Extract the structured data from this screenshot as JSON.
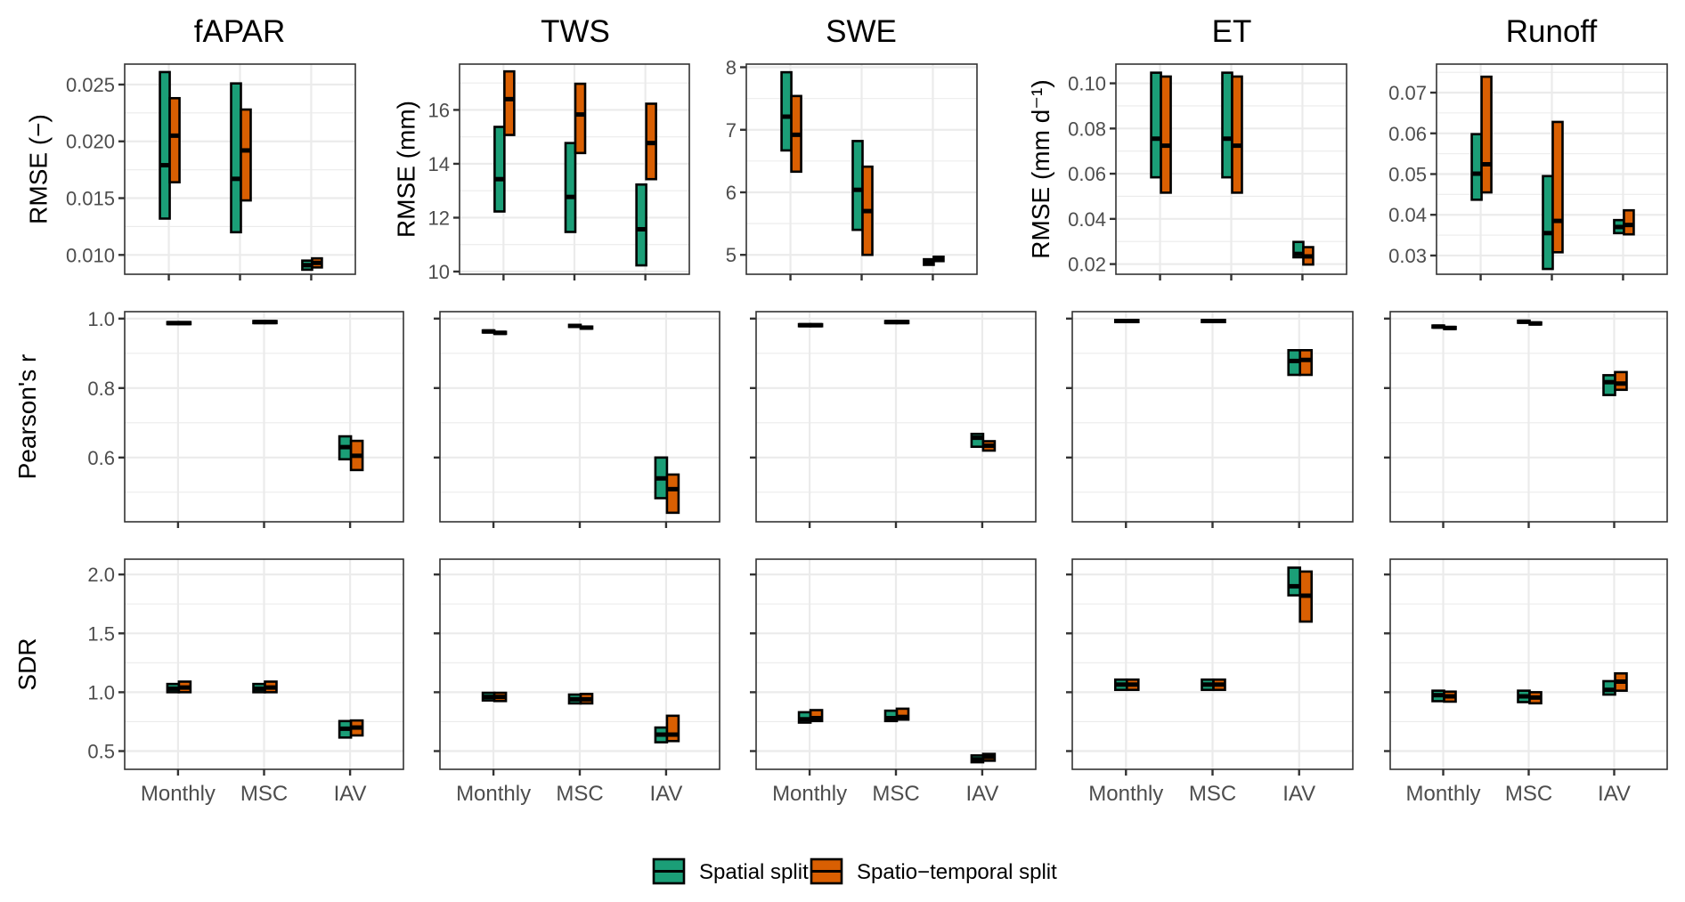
{
  "chart_data": {
    "type": "crossbar",
    "layout": "facet grid, 3 rows (metrics) x 5 columns (variables)",
    "categories": [
      "Monthly",
      "MSC",
      "IAV"
    ],
    "legend": {
      "position": "bottom",
      "entries": [
        {
          "key": "spatial",
          "label": "Spatial split",
          "color": "#1b9e77"
        },
        {
          "key": "spatiotemporal",
          "label": "Spatio−temporal split",
          "color": "#d95f02"
        }
      ]
    },
    "columns": [
      {
        "title": "fAPAR"
      },
      {
        "title": "TWS"
      },
      {
        "title": "SWE"
      },
      {
        "title": "ET"
      },
      {
        "title": "Runoff"
      }
    ],
    "rows": [
      {
        "metric": "RMSE",
        "shared_y": false,
        "panels": [
          {
            "variable": "fAPAR",
            "ylabel": "RMSE (−)",
            "ylim": [
              0.0083,
              0.0268
            ],
            "yticks": [
              0.01,
              0.015,
              0.02,
              0.025
            ],
            "ytick_labels": [
              "0.010",
              "0.015",
              "0.020",
              "0.025"
            ],
            "series": {
              "spatial": [
                {
                  "min": 0.0132,
                  "median": 0.0179,
                  "max": 0.0261
                },
                {
                  "min": 0.012,
                  "median": 0.0167,
                  "max": 0.0251
                },
                {
                  "min": 0.0087,
                  "median": 0.0091,
                  "max": 0.0095
                }
              ],
              "spatiotemporal": [
                {
                  "min": 0.0164,
                  "median": 0.0205,
                  "max": 0.0238
                },
                {
                  "min": 0.0148,
                  "median": 0.0192,
                  "max": 0.0228
                },
                {
                  "min": 0.0089,
                  "median": 0.0093,
                  "max": 0.0097
                }
              ]
            }
          },
          {
            "variable": "TWS",
            "ylabel": "RMSE (mm)",
            "ylim": [
              9.9,
              17.7
            ],
            "yticks": [
              10,
              12,
              14,
              16
            ],
            "ytick_labels": [
              "10",
              "12",
              "14",
              "16"
            ],
            "series": {
              "spatial": [
                {
                  "min": 12.23,
                  "median": 13.43,
                  "max": 15.37
                },
                {
                  "min": 11.47,
                  "median": 12.77,
                  "max": 14.77
                },
                {
                  "min": 10.23,
                  "median": 11.57,
                  "max": 13.23
                }
              ],
              "spatiotemporal": [
                {
                  "min": 15.07,
                  "median": 16.4,
                  "max": 17.43
                },
                {
                  "min": 14.4,
                  "median": 15.83,
                  "max": 16.97
                },
                {
                  "min": 13.43,
                  "median": 14.77,
                  "max": 16.23
                }
              ]
            }
          },
          {
            "variable": "SWE",
            "ylabel": "",
            "ylim": [
              4.69,
              8.05
            ],
            "yticks": [
              5,
              6,
              7,
              8
            ],
            "ytick_labels": [
              "5",
              "6",
              "7",
              "8"
            ],
            "series": {
              "spatial": [
                {
                  "min": 6.67,
                  "median": 7.21,
                  "max": 7.92
                },
                {
                  "min": 5.4,
                  "median": 6.04,
                  "max": 6.82
                },
                {
                  "min": 4.84,
                  "median": 4.88,
                  "max": 4.93
                }
              ],
              "spatiotemporal": [
                {
                  "min": 6.33,
                  "median": 6.92,
                  "max": 7.54
                },
                {
                  "min": 5.0,
                  "median": 5.7,
                  "max": 6.41
                },
                {
                  "min": 4.9,
                  "median": 4.93,
                  "max": 4.97
                }
              ]
            }
          },
          {
            "variable": "ET",
            "ylabel": "RMSE  (mm  d⁻¹)",
            "ylim": [
              0.0155,
              0.1085
            ],
            "yticks": [
              0.02,
              0.04,
              0.06,
              0.08,
              0.1
            ],
            "ytick_labels": [
              "0.02",
              "0.04",
              "0.06",
              "0.08",
              "0.10"
            ],
            "series": {
              "spatial": [
                {
                  "min": 0.0584,
                  "median": 0.0755,
                  "max": 0.1047
                },
                {
                  "min": 0.0584,
                  "median": 0.0755,
                  "max": 0.1047
                },
                {
                  "min": 0.023,
                  "median": 0.0245,
                  "max": 0.0298
                }
              ],
              "spatiotemporal": [
                {
                  "min": 0.0516,
                  "median": 0.0724,
                  "max": 0.103
                },
                {
                  "min": 0.0516,
                  "median": 0.0724,
                  "max": 0.103
                },
                {
                  "min": 0.0198,
                  "median": 0.0234,
                  "max": 0.0275
                }
              ]
            }
          },
          {
            "variable": "Runoff",
            "ylabel": "",
            "ylim": [
              0.0254,
              0.077
            ],
            "yticks": [
              0.03,
              0.04,
              0.05,
              0.06,
              0.07
            ],
            "ytick_labels": [
              "0.03",
              "0.04",
              "0.05",
              "0.06",
              "0.07"
            ],
            "series": {
              "spatial": [
                {
                  "min": 0.0437,
                  "median": 0.0501,
                  "max": 0.0598
                },
                {
                  "min": 0.0267,
                  "median": 0.0355,
                  "max": 0.0495
                },
                {
                  "min": 0.0355,
                  "median": 0.037,
                  "max": 0.0387
                }
              ],
              "spatiotemporal": [
                {
                  "min": 0.0455,
                  "median": 0.0524,
                  "max": 0.0739
                },
                {
                  "min": 0.0308,
                  "median": 0.0385,
                  "max": 0.0628
                },
                {
                  "min": 0.0352,
                  "median": 0.0375,
                  "max": 0.0411
                }
              ]
            }
          }
        ]
      },
      {
        "metric": "Pearson's r",
        "shared_y": true,
        "ylabel": "Pearson's r",
        "ylim": [
          0.415,
          1.02
        ],
        "yticks": [
          0.6,
          0.8,
          1.0
        ],
        "ytick_labels": [
          "0.6",
          "0.8",
          "1.0"
        ],
        "panels": [
          {
            "variable": "fAPAR",
            "series": {
              "spatial": [
                {
                  "min": 0.984,
                  "median": 0.987,
                  "max": 0.99
                },
                {
                  "min": 0.987,
                  "median": 0.99,
                  "max": 0.993
                },
                {
                  "min": 0.595,
                  "median": 0.63,
                  "max": 0.661
                }
              ],
              "spatiotemporal": [
                {
                  "min": 0.984,
                  "median": 0.987,
                  "max": 0.99
                },
                {
                  "min": 0.987,
                  "median": 0.99,
                  "max": 0.993
                },
                {
                  "min": 0.564,
                  "median": 0.605,
                  "max": 0.648
                }
              ]
            }
          },
          {
            "variable": "TWS",
            "series": {
              "spatial": [
                {
                  "min": 0.96,
                  "median": 0.963,
                  "max": 0.966
                },
                {
                  "min": 0.976,
                  "median": 0.979,
                  "max": 0.982
                },
                {
                  "min": 0.483,
                  "median": 0.54,
                  "max": 0.6
                }
              ],
              "spatiotemporal": [
                {
                  "min": 0.956,
                  "median": 0.959,
                  "max": 0.962
                },
                {
                  "min": 0.971,
                  "median": 0.974,
                  "max": 0.977
                },
                {
                  "min": 0.441,
                  "median": 0.509,
                  "max": 0.551
                }
              ]
            }
          },
          {
            "variable": "SWE",
            "series": {
              "spatial": [
                {
                  "min": 0.978,
                  "median": 0.981,
                  "max": 0.984
                },
                {
                  "min": 0.987,
                  "median": 0.99,
                  "max": 0.993
                },
                {
                  "min": 0.631,
                  "median": 0.657,
                  "max": 0.668
                }
              ],
              "spatiotemporal": [
                {
                  "min": 0.978,
                  "median": 0.981,
                  "max": 0.984
                },
                {
                  "min": 0.987,
                  "median": 0.99,
                  "max": 0.993
                },
                {
                  "min": 0.62,
                  "median": 0.634,
                  "max": 0.647
                }
              ]
            }
          },
          {
            "variable": "ET",
            "series": {
              "spatial": [
                {
                  "min": 0.99,
                  "median": 0.993,
                  "max": 0.996
                },
                {
                  "min": 0.99,
                  "median": 0.993,
                  "max": 0.996
                },
                {
                  "min": 0.838,
                  "median": 0.878,
                  "max": 0.909
                }
              ],
              "spatiotemporal": [
                {
                  "min": 0.99,
                  "median": 0.993,
                  "max": 0.996
                },
                {
                  "min": 0.99,
                  "median": 0.993,
                  "max": 0.996
                },
                {
                  "min": 0.838,
                  "median": 0.881,
                  "max": 0.909
                }
              ]
            }
          },
          {
            "variable": "Runoff",
            "series": {
              "spatial": [
                {
                  "min": 0.974,
                  "median": 0.977,
                  "max": 0.98
                },
                {
                  "min": 0.988,
                  "median": 0.991,
                  "max": 0.994
                },
                {
                  "min": 0.78,
                  "median": 0.817,
                  "max": 0.837
                }
              ],
              "spatiotemporal": [
                {
                  "min": 0.97,
                  "median": 0.973,
                  "max": 0.976
                },
                {
                  "min": 0.983,
                  "median": 0.986,
                  "max": 0.989
                },
                {
                  "min": 0.795,
                  "median": 0.813,
                  "max": 0.846
                }
              ]
            }
          }
        ]
      },
      {
        "metric": "SDR",
        "shared_y": true,
        "ylabel": "SDR",
        "ylim": [
          0.345,
          2.13
        ],
        "yticks": [
          0.5,
          1.0,
          1.5,
          2.0
        ],
        "ytick_labels": [
          "0.5",
          "1.0",
          "1.5",
          "2.0"
        ],
        "panels": [
          {
            "variable": "fAPAR",
            "series": {
              "spatial": [
                {
                  "min": 1.0,
                  "median": 1.03,
                  "max": 1.07
                },
                {
                  "min": 1.0,
                  "median": 1.03,
                  "max": 1.07
                },
                {
                  "min": 0.615,
                  "median": 0.69,
                  "max": 0.755
                }
              ],
              "spatiotemporal": [
                {
                  "min": 1.0,
                  "median": 1.04,
                  "max": 1.09
                },
                {
                  "min": 1.0,
                  "median": 1.04,
                  "max": 1.09
                },
                {
                  "min": 0.633,
                  "median": 0.7,
                  "max": 0.76
                }
              ]
            }
          },
          {
            "variable": "TWS",
            "series": {
              "spatial": [
                {
                  "min": 0.93,
                  "median": 0.96,
                  "max": 0.995
                },
                {
                  "min": 0.905,
                  "median": 0.94,
                  "max": 0.98
                },
                {
                  "min": 0.575,
                  "median": 0.64,
                  "max": 0.7
                }
              ],
              "spatiotemporal": [
                {
                  "min": 0.925,
                  "median": 0.96,
                  "max": 0.995
                },
                {
                  "min": 0.905,
                  "median": 0.94,
                  "max": 0.985
                },
                {
                  "min": 0.585,
                  "median": 0.64,
                  "max": 0.8
                }
              ]
            }
          },
          {
            "variable": "SWE",
            "series": {
              "spatial": [
                {
                  "min": 0.742,
                  "median": 0.77,
                  "max": 0.83
                },
                {
                  "min": 0.755,
                  "median": 0.78,
                  "max": 0.843
                },
                {
                  "min": 0.405,
                  "median": 0.43,
                  "max": 0.463
                }
              ],
              "spatiotemporal": [
                {
                  "min": 0.755,
                  "median": 0.78,
                  "max": 0.848
                },
                {
                  "min": 0.767,
                  "median": 0.79,
                  "max": 0.86
                },
                {
                  "min": 0.418,
                  "median": 0.45,
                  "max": 0.476
                }
              ]
            }
          },
          {
            "variable": "ET",
            "series": {
              "spatial": [
                {
                  "min": 1.02,
                  "median": 1.065,
                  "max": 1.107
                },
                {
                  "min": 1.02,
                  "median": 1.065,
                  "max": 1.107
                },
                {
                  "min": 1.823,
                  "median": 1.9,
                  "max": 2.058
                }
              ],
              "spatiotemporal": [
                {
                  "min": 1.02,
                  "median": 1.065,
                  "max": 1.107
                },
                {
                  "min": 1.02,
                  "median": 1.065,
                  "max": 1.107
                },
                {
                  "min": 1.6,
                  "median": 1.82,
                  "max": 2.025
                }
              ]
            }
          },
          {
            "variable": "Runoff",
            "series": {
              "spatial": [
                {
                  "min": 0.924,
                  "median": 0.975,
                  "max": 1.013
                },
                {
                  "min": 0.916,
                  "median": 0.965,
                  "max": 1.013
                },
                {
                  "min": 0.98,
                  "median": 1.02,
                  "max": 1.094
                }
              ],
              "spatiotemporal": [
                {
                  "min": 0.92,
                  "median": 0.965,
                  "max": 1.005
                },
                {
                  "min": 0.906,
                  "median": 0.955,
                  "max": 1.0
                },
                {
                  "min": 1.013,
                  "median": 1.09,
                  "max": 1.16
                }
              ]
            }
          }
        ]
      }
    ]
  }
}
